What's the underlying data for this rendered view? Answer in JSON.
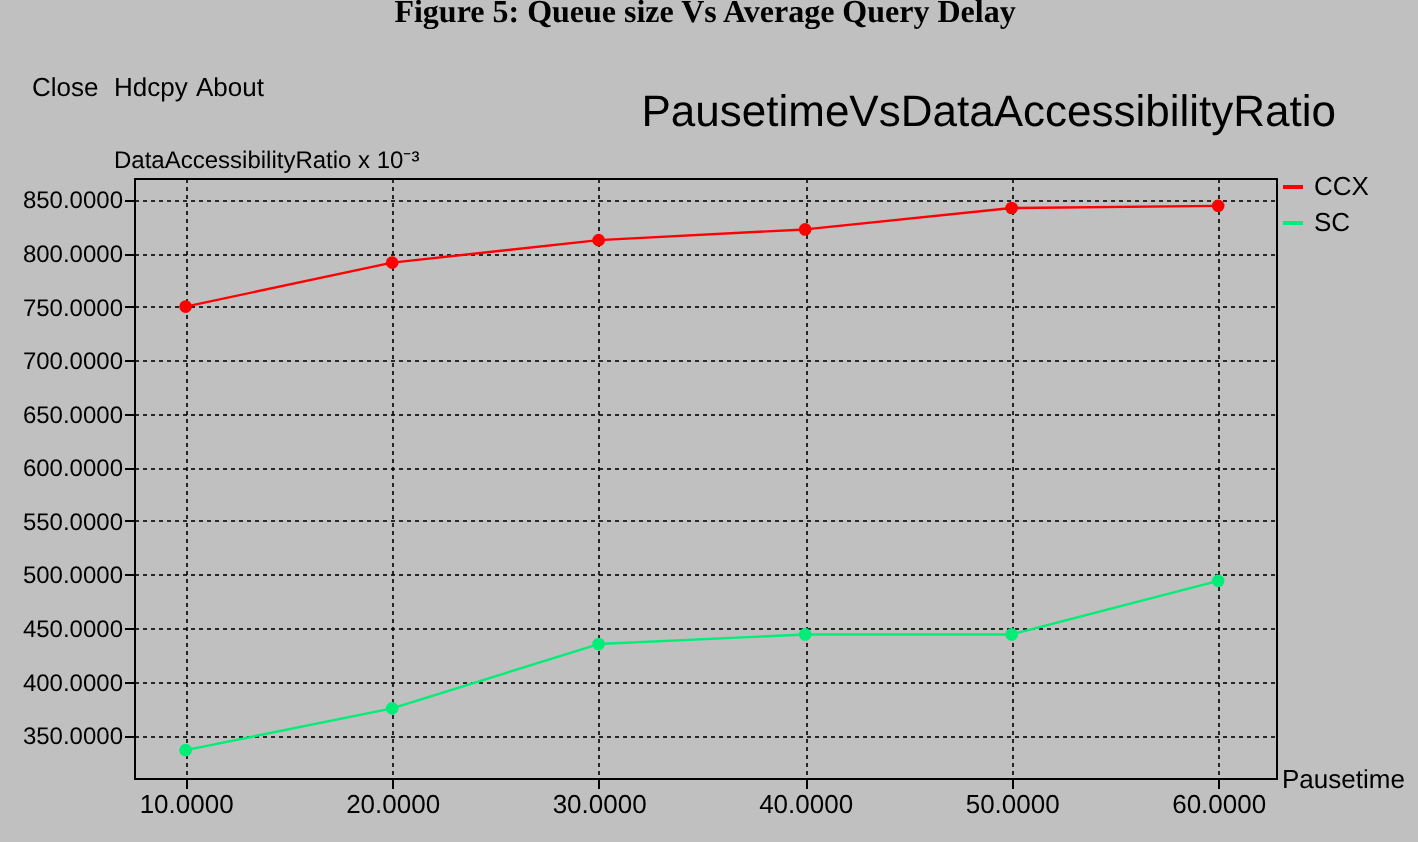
{
  "chart_data": {
    "type": "line",
    "title": "PausetimeVsDataAccessibilityRatio",
    "xlabel": "Pausetime",
    "ylabel": "DataAccessibilityRatio x 10⁻³",
    "annotations": [
      "Figure 5: Queue size Vs Average Query Delay",
      "Close",
      "Hdcpy",
      "About"
    ],
    "x": [
      10,
      20,
      30,
      40,
      50,
      60
    ],
    "series": [
      {
        "name": "CCX",
        "color": "#ff0000",
        "values": [
          750,
          791,
          812,
          822,
          842,
          844
        ]
      },
      {
        "name": "SC",
        "color": "#00ee77",
        "values": [
          336,
          375,
          435,
          444,
          444,
          494
        ]
      }
    ],
    "xlim": [
      7.5,
      62.8
    ],
    "ylim": [
      310,
      870
    ],
    "xticks": [
      {
        "value": 10,
        "label": "10.0000"
      },
      {
        "value": 20,
        "label": "20.0000"
      },
      {
        "value": 30,
        "label": "30.0000"
      },
      {
        "value": 40,
        "label": "40.0000"
      },
      {
        "value": 50,
        "label": "50.0000"
      },
      {
        "value": 60,
        "label": "60.0000"
      }
    ],
    "yticks": [
      {
        "value": 350,
        "label": "350.0000"
      },
      {
        "value": 400,
        "label": "400.0000"
      },
      {
        "value": 450,
        "label": "450.0000"
      },
      {
        "value": 500,
        "label": "500.0000"
      },
      {
        "value": 550,
        "label": "550.0000"
      },
      {
        "value": 600,
        "label": "600.0000"
      },
      {
        "value": 650,
        "label": "650.0000"
      },
      {
        "value": 700,
        "label": "700.0000"
      },
      {
        "value": 750,
        "label": "750.0000"
      },
      {
        "value": 800,
        "label": "800.0000"
      },
      {
        "value": 850,
        "label": "850.0000"
      }
    ],
    "grid": true,
    "legend": "top right",
    "marker": "circle",
    "line_style": "solid"
  }
}
